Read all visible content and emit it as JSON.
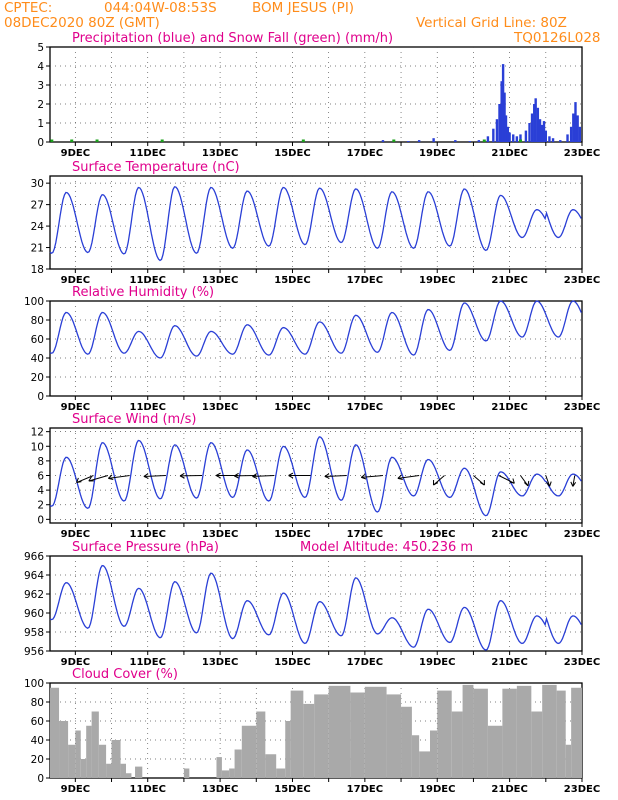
{
  "header": {
    "source": "CPTEC:",
    "coords": "044:04W-08:53S",
    "station": "BOM JESUS (PI)",
    "run": "08DEC2020 80Z (GMT)",
    "grid_line": "Vertical Grid Line: 80Z",
    "code": "TQ0126L028"
  },
  "colors": {
    "header": "#ff8c1a",
    "title": "#e0008c",
    "series": "#2a3fd6",
    "snow": "#1aa01a",
    "cloud": "#a9a9a9",
    "grid": "#555555"
  },
  "chart_data": [
    {
      "id": "precip",
      "type": "bar",
      "title": "Precipitation (blue) and Snow Fall (green) (mm/h)",
      "x_labels": [
        "9DEC",
        "11DEC",
        "13DEC",
        "15DEC",
        "17DEC",
        "19DEC",
        "21DEC",
        "23DEC"
      ],
      "x_range_days": [
        8.3,
        23.0
      ],
      "ylim": [
        0,
        5
      ],
      "yticks": [
        "0",
        "1",
        "2",
        "3",
        "4",
        "5"
      ],
      "rain": [
        [
          17.5,
          0.1
        ],
        [
          18.2,
          0.05
        ],
        [
          18.5,
          0.1
        ],
        [
          18.9,
          0.2
        ],
        [
          19.5,
          0.1
        ],
        [
          19.9,
          0.05
        ],
        [
          20.15,
          0.1
        ],
        [
          20.4,
          0.3
        ],
        [
          20.55,
          0.7
        ],
        [
          20.65,
          1.2
        ],
        [
          20.72,
          2.0
        ],
        [
          20.78,
          3.2
        ],
        [
          20.82,
          4.1
        ],
        [
          20.86,
          2.6
        ],
        [
          20.9,
          1.4
        ],
        [
          20.95,
          0.8
        ],
        [
          21.0,
          0.5
        ],
        [
          21.1,
          0.4
        ],
        [
          21.2,
          0.3
        ],
        [
          21.3,
          0.4
        ],
        [
          21.45,
          0.6
        ],
        [
          21.55,
          1.0
        ],
        [
          21.62,
          1.5
        ],
        [
          21.68,
          2.0
        ],
        [
          21.72,
          2.3
        ],
        [
          21.78,
          1.8
        ],
        [
          21.84,
          1.2
        ],
        [
          21.9,
          0.9
        ],
        [
          21.95,
          1.1
        ],
        [
          22.0,
          0.6
        ],
        [
          22.1,
          0.3
        ],
        [
          22.2,
          0.2
        ],
        [
          22.4,
          0.1
        ],
        [
          22.6,
          0.4
        ],
        [
          22.7,
          0.8
        ],
        [
          22.76,
          1.5
        ],
        [
          22.82,
          2.1
        ],
        [
          22.88,
          1.4
        ],
        [
          22.94,
          0.8
        ]
      ],
      "snow": [
        [
          8.35,
          0.05
        ],
        [
          8.9,
          0.05
        ],
        [
          9.6,
          0.04
        ],
        [
          11.4,
          0.04
        ],
        [
          15.3,
          0.04
        ],
        [
          17.8,
          0.04
        ],
        [
          20.3,
          0.05
        ],
        [
          21.3,
          0.05
        ]
      ]
    },
    {
      "id": "temp",
      "type": "line",
      "title": "Surface Temperature (nC)",
      "x_labels": [
        "9DEC",
        "11DEC",
        "13DEC",
        "15DEC",
        "17DEC",
        "19DEC",
        "21DEC",
        "23DEC"
      ],
      "ylim": [
        18,
        31
      ],
      "yticks": [
        "18",
        "21",
        "24",
        "27",
        "30"
      ],
      "maxs": [
        28.7,
        28.4,
        29.4,
        29.5,
        29.4,
        28.9,
        29.4,
        29.3,
        29.2,
        28.8,
        28.8,
        29.2,
        28.3,
        26.3
      ],
      "mins": [
        20.2,
        20.3,
        20.1,
        19.2,
        20.2,
        20.9,
        21.2,
        21.4,
        21.7,
        20.9,
        20.9,
        21.2,
        20.6,
        22.4
      ]
    },
    {
      "id": "rh",
      "type": "line",
      "title": "Relative Humidity (%)",
      "x_labels": [
        "9DEC",
        "11DEC",
        "13DEC",
        "15DEC",
        "17DEC",
        "19DEC",
        "21DEC",
        "23DEC"
      ],
      "ylim": [
        0,
        100
      ],
      "yticks": [
        "0",
        "20",
        "40",
        "60",
        "80",
        "100"
      ],
      "maxs": [
        88,
        88,
        68,
        74,
        68,
        75,
        72,
        78,
        85,
        88,
        91,
        98,
        100,
        100
      ],
      "mins": [
        45,
        44,
        45,
        40,
        42,
        44,
        43,
        44,
        45,
        46,
        43,
        48,
        58,
        62
      ]
    },
    {
      "id": "wind",
      "type": "line",
      "title": "Surface Wind (m/s)",
      "x_labels": [
        "9DEC",
        "11DEC",
        "13DEC",
        "15DEC",
        "17DEC",
        "19DEC",
        "21DEC",
        "23DEC"
      ],
      "ylim": [
        -0.5,
        12.5
      ],
      "yticks": [
        "0",
        "2",
        "4",
        "6",
        "8",
        "10",
        "12"
      ],
      "maxs": [
        8.5,
        10.5,
        10.8,
        10.2,
        10.5,
        9.5,
        10,
        11.3,
        10.2,
        8.5,
        8.2,
        7,
        6.5,
        6.2
      ],
      "mins": [
        1.8,
        1.5,
        2.5,
        2.8,
        2.9,
        3.0,
        2.5,
        3.0,
        2.6,
        1.0,
        3.2,
        3.0,
        0.5,
        3.2
      ],
      "barb_days": [
        9.5,
        9.9,
        10.5,
        11.5,
        12.5,
        13.5,
        14.0,
        14.5,
        15.5,
        16.5,
        17.5,
        18.5,
        19.2,
        20.0,
        20.7,
        21.3,
        22.0,
        22.8
      ],
      "barb_angles": [
        -140,
        -150,
        -165,
        -175,
        -178,
        -180,
        -178,
        -175,
        -180,
        -175,
        -170,
        -165,
        -120,
        -60,
        -45,
        -70,
        -80,
        -95
      ]
    },
    {
      "id": "pres",
      "type": "line",
      "title": "Surface Pressure (hPa)",
      "annotation": "Model Altitude: 450.236 m",
      "x_labels": [
        "9DEC",
        "11DEC",
        "13DEC",
        "15DEC",
        "17DEC",
        "19DEC",
        "21DEC",
        "23DEC"
      ],
      "ylim": [
        956,
        966
      ],
      "yticks": [
        "956",
        "958",
        "960",
        "962",
        "964",
        "966"
      ],
      "maxs": [
        963.2,
        965.0,
        962.6,
        963.3,
        964.2,
        961.3,
        962.1,
        961.2,
        963.7,
        959.5,
        960.4,
        960.6,
        961.3,
        959.7
      ],
      "mins": [
        959.3,
        958.4,
        958.6,
        957.4,
        957.9,
        957.3,
        957.7,
        956.8,
        957.6,
        957.8,
        956.4,
        956.9,
        956.1,
        956.8
      ]
    },
    {
      "id": "cloud",
      "type": "area",
      "title": "Cloud Cover (%)",
      "x_labels": [
        "9DEC",
        "11DEC",
        "13DEC",
        "15DEC",
        "17DEC",
        "19DEC",
        "21DEC",
        "23DEC"
      ],
      "ylim": [
        0,
        100
      ],
      "yticks": [
        "0",
        "20",
        "40",
        "60",
        "80",
        "100"
      ],
      "segments": [
        [
          8.3,
          8.55,
          95
        ],
        [
          8.55,
          8.8,
          60
        ],
        [
          8.8,
          9.0,
          35
        ],
        [
          9.0,
          9.15,
          50
        ],
        [
          9.15,
          9.3,
          20
        ],
        [
          9.3,
          9.45,
          55
        ],
        [
          9.45,
          9.65,
          70
        ],
        [
          9.65,
          9.85,
          35
        ],
        [
          9.85,
          10.0,
          15
        ],
        [
          10.0,
          10.25,
          40
        ],
        [
          10.25,
          10.4,
          15
        ],
        [
          10.4,
          10.55,
          5
        ],
        [
          10.55,
          10.65,
          0
        ],
        [
          10.65,
          10.85,
          12
        ],
        [
          10.85,
          12.0,
          0
        ],
        [
          12.0,
          12.15,
          10
        ],
        [
          12.15,
          12.9,
          0
        ],
        [
          12.9,
          13.05,
          22
        ],
        [
          13.05,
          13.25,
          8
        ],
        [
          13.25,
          13.4,
          10
        ],
        [
          13.4,
          13.6,
          30
        ],
        [
          13.6,
          14.0,
          55
        ],
        [
          14.0,
          14.25,
          70
        ],
        [
          14.25,
          14.55,
          25
        ],
        [
          14.55,
          14.8,
          10
        ],
        [
          14.8,
          14.95,
          60
        ],
        [
          14.95,
          15.3,
          92
        ],
        [
          15.3,
          15.6,
          78
        ],
        [
          15.6,
          16.0,
          88
        ],
        [
          16.0,
          16.6,
          97
        ],
        [
          16.6,
          17.0,
          90
        ],
        [
          17.0,
          17.6,
          96
        ],
        [
          17.6,
          18.0,
          88
        ],
        [
          18.0,
          18.3,
          75
        ],
        [
          18.3,
          18.5,
          45
        ],
        [
          18.5,
          18.8,
          28
        ],
        [
          18.8,
          19.0,
          50
        ],
        [
          19.0,
          19.4,
          92
        ],
        [
          19.4,
          19.7,
          70
        ],
        [
          19.7,
          20.0,
          98
        ],
        [
          20.0,
          20.4,
          94
        ],
        [
          20.4,
          20.8,
          55
        ],
        [
          20.8,
          21.2,
          94
        ],
        [
          21.2,
          21.6,
          97
        ],
        [
          21.6,
          21.9,
          70
        ],
        [
          21.9,
          22.3,
          98
        ],
        [
          22.3,
          22.55,
          92
        ],
        [
          22.55,
          22.7,
          35
        ],
        [
          22.7,
          23.0,
          95
        ]
      ]
    }
  ]
}
